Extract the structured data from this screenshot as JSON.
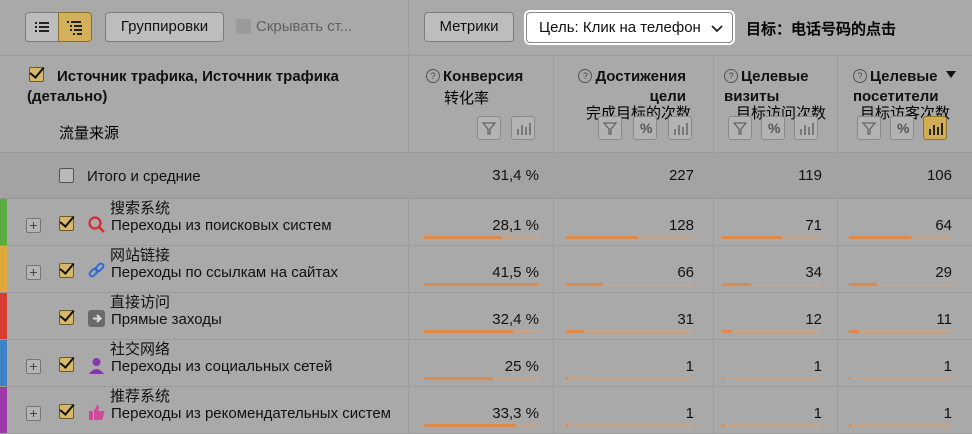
{
  "toolbar": {
    "group_label": "Группировки",
    "hide_label": "Скрывать ст...",
    "metrics_label": "Метрики",
    "goal_label": "Цель: Клик на телефон",
    "goal_translation": "目标：电话号码的点击"
  },
  "columns": {
    "dimension": {
      "title": "Источник трафика, Источник трафика (детально)",
      "translation": "流量来源"
    },
    "metrics": [
      {
        "title": "Конверсия",
        "translation": "转化率"
      },
      {
        "title": "Достижения цели",
        "translation": "完成目标的次数"
      },
      {
        "title": "Целевые визиты",
        "translation": "目标访问次数"
      },
      {
        "title": "Целевые посетители",
        "translation": "目标访客次数"
      }
    ]
  },
  "totals": {
    "label": "Итого и средние",
    "values": [
      "31,4 %",
      "227",
      "119",
      "106"
    ]
  },
  "rows": [
    {
      "label": "Переходы из поисковых систем",
      "translation": "搜索系统",
      "values": [
        "28,1 %",
        "128",
        "71",
        "64"
      ],
      "fill": [
        0.68,
        0.56,
        0.6,
        0.6
      ],
      "stripe": "#5aac3e",
      "icon": "search-icon",
      "icon_color": "#d62b2b",
      "expand": true
    },
    {
      "label": "Переходы по ссылкам на сайтах",
      "translation": "网站链接",
      "values": [
        "41,5 %",
        "66",
        "34",
        "29"
      ],
      "fill": [
        1.0,
        0.29,
        0.29,
        0.27
      ],
      "stripe": "#e0a93b",
      "icon": "link-icon",
      "icon_color": "#2c6bd6",
      "expand": true
    },
    {
      "label": "Прямые заходы",
      "translation": "直接访问",
      "values": [
        "32,4 %",
        "31",
        "12",
        "11"
      ],
      "fill": [
        0.78,
        0.14,
        0.1,
        0.1
      ],
      "stripe": "#d63c2f",
      "icon": "arrow-right-icon",
      "icon_color": "#6a6a6a",
      "expand": false
    },
    {
      "label": "Переходы из социальных сетей",
      "translation": "社交网络",
      "values": [
        "25 %",
        "1",
        "1",
        "1"
      ],
      "fill": [
        0.6,
        0.01,
        0.01,
        0.01
      ],
      "stripe": "#3f82c4",
      "icon": "user-icon",
      "icon_color": "#8a35b0",
      "expand": true
    },
    {
      "label": "Переходы из рекомендательных систем",
      "translation": "推荐系统",
      "values": [
        "33,3 %",
        "1",
        "1",
        "1"
      ],
      "fill": [
        0.8,
        0.01,
        0.01,
        0.01
      ],
      "stripe": "#9b3aa8",
      "icon": "thumb-up-icon",
      "icon_color": "#d04a9a",
      "expand": true
    }
  ]
}
